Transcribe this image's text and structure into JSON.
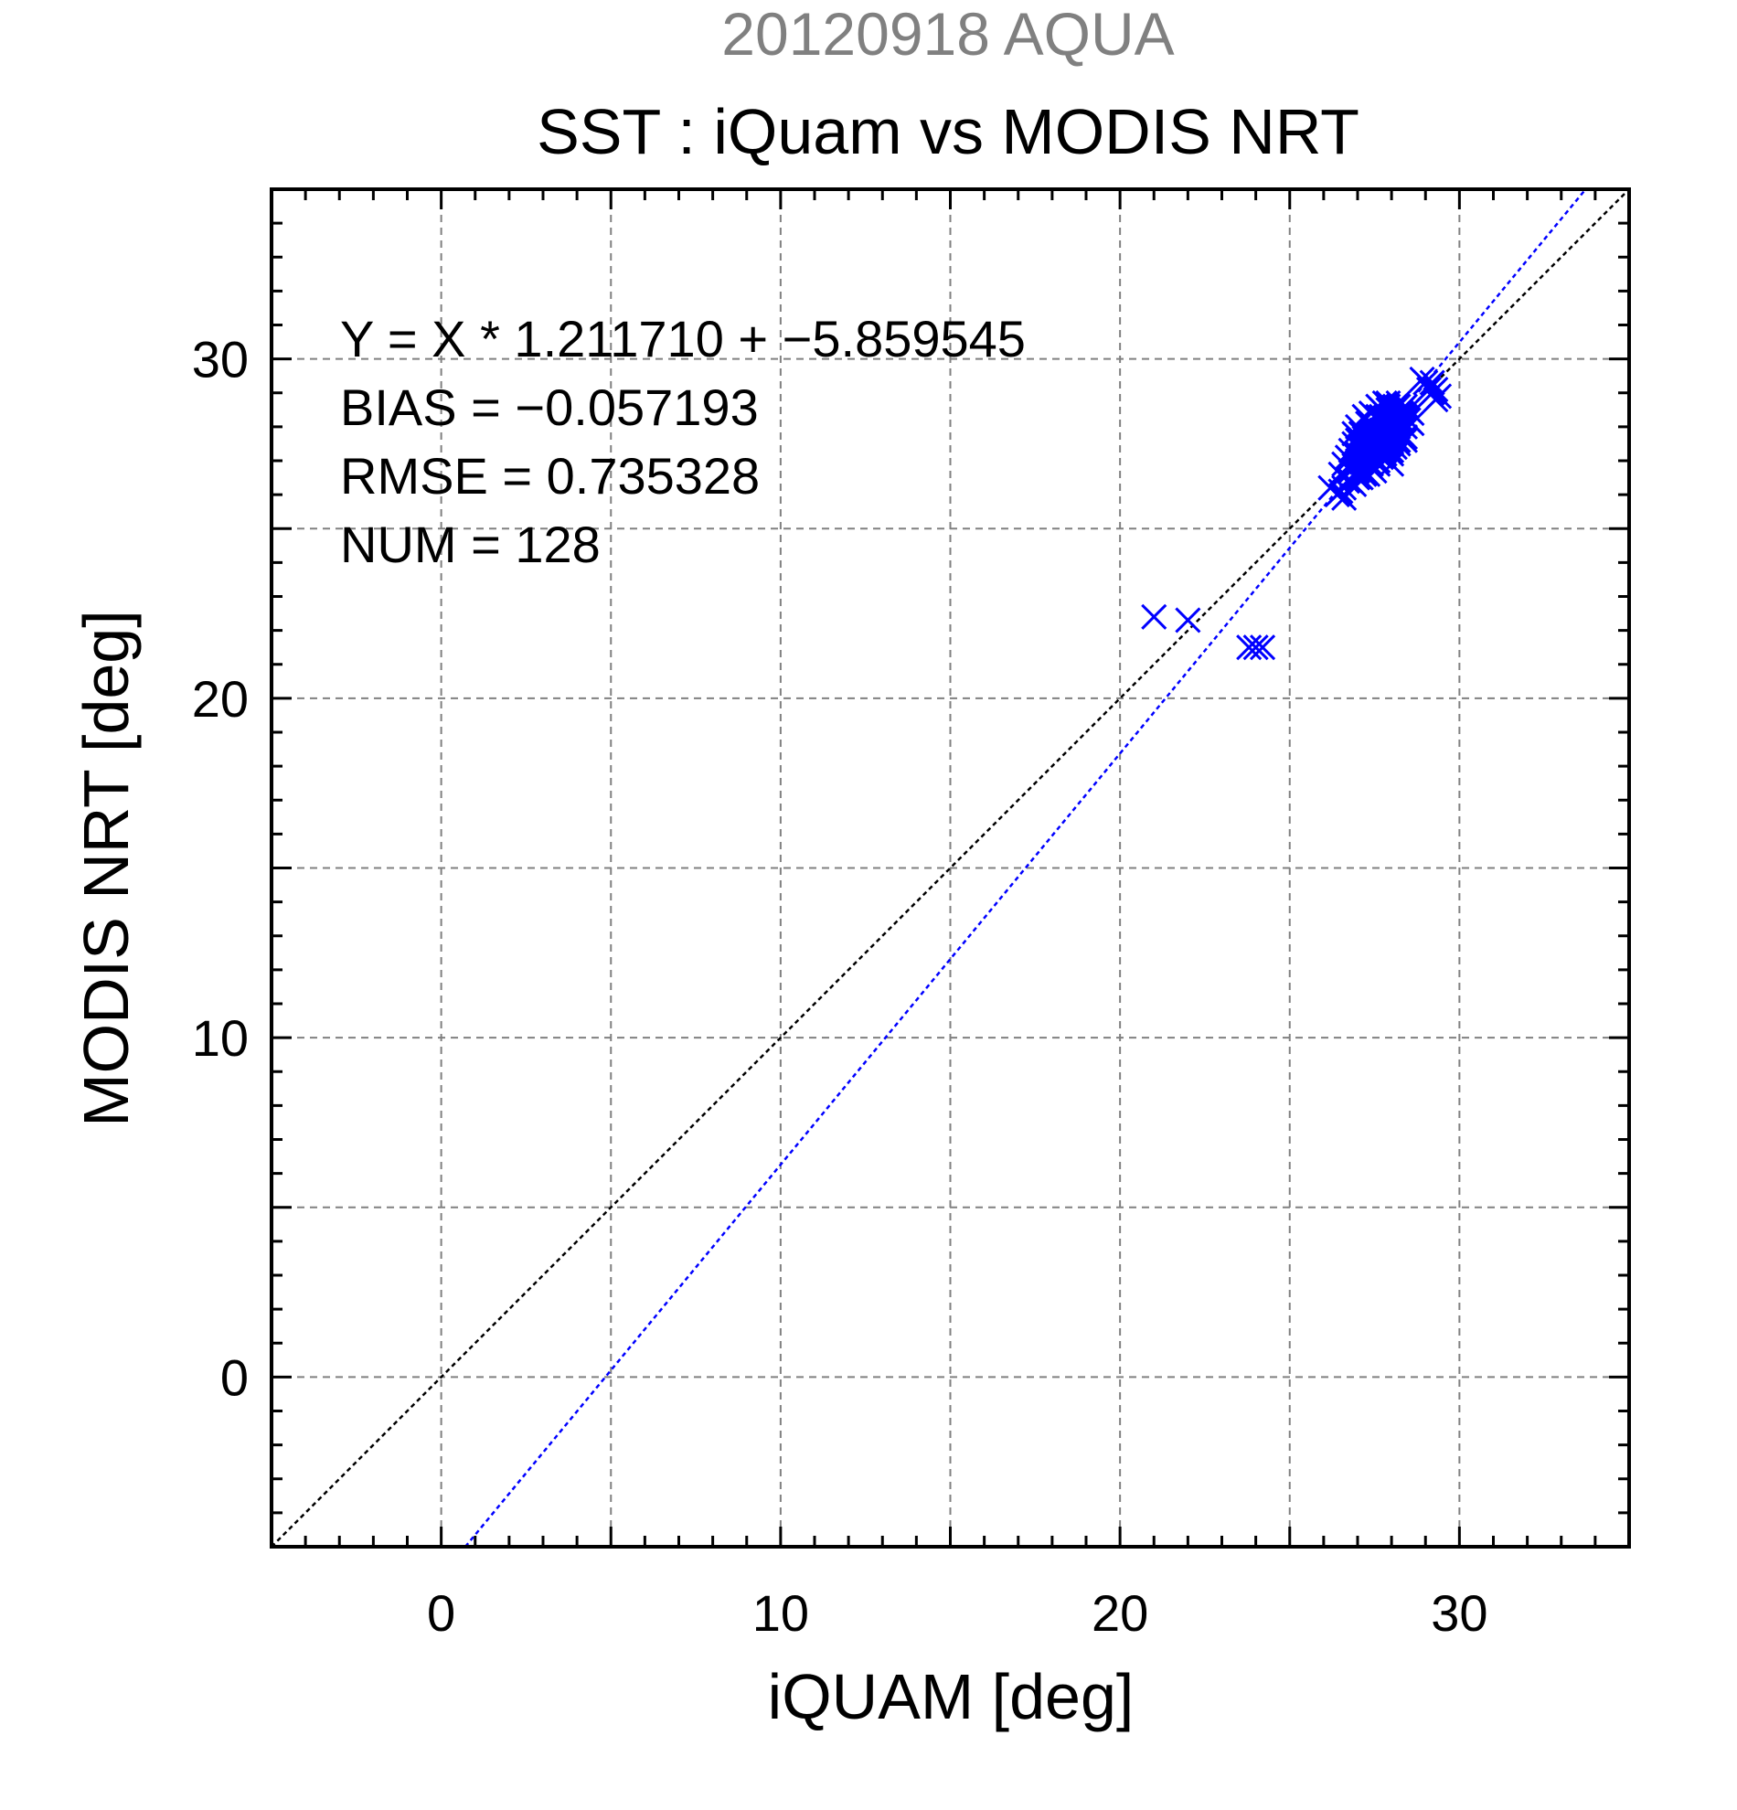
{
  "chart_data": {
    "type": "scatter",
    "supertitle": "20120918 AQUA",
    "title": "SST : iQuam vs MODIS NRT",
    "xlabel": "iQUAM [deg]",
    "ylabel": "MODIS NRT [deg]",
    "xlim": [
      -5,
      35
    ],
    "ylim": [
      -5,
      35
    ],
    "xticks": [
      0,
      10,
      20,
      30
    ],
    "yticks": [
      0,
      10,
      20,
      30
    ],
    "xtick_labels": [
      "0",
      "10",
      "20",
      "30"
    ],
    "ytick_labels": [
      "0",
      "10",
      "20",
      "30"
    ],
    "grid": true,
    "stats": [
      "Y = X * 1.211710 + −5.859545",
      "BIAS = −0.057193",
      "RMSE = 0.735328",
      "NUM = 128"
    ],
    "fit_line": {
      "slope": 1.21171,
      "intercept": -5.859545
    },
    "identity_line": {
      "slope": 1,
      "intercept": 0
    },
    "colors": {
      "supertitle": "#808080",
      "points": "#0000ff",
      "fit_line": "#0000ff",
      "identity_line": "#000000",
      "grid": "#808080"
    },
    "points": [
      [
        21.0,
        22.4
      ],
      [
        22.0,
        22.3
      ],
      [
        23.8,
        21.5
      ],
      [
        24.0,
        21.5
      ],
      [
        24.2,
        21.5
      ],
      [
        26.2,
        26.2
      ],
      [
        26.4,
        26.0
      ],
      [
        26.5,
        26.1
      ],
      [
        26.6,
        25.9
      ],
      [
        26.5,
        26.6
      ],
      [
        26.6,
        26.9
      ],
      [
        26.7,
        27.1
      ],
      [
        26.8,
        27.3
      ],
      [
        26.9,
        27.5
      ],
      [
        26.8,
        26.7
      ],
      [
        26.9,
        26.9
      ],
      [
        27.0,
        27.2
      ],
      [
        27.0,
        27.6
      ],
      [
        27.0,
        28.0
      ],
      [
        27.1,
        26.8
      ],
      [
        27.1,
        27.4
      ],
      [
        27.1,
        27.8
      ],
      [
        27.2,
        26.6
      ],
      [
        27.2,
        27.0
      ],
      [
        27.2,
        27.3
      ],
      [
        27.2,
        27.7
      ],
      [
        27.3,
        26.9
      ],
      [
        27.3,
        27.2
      ],
      [
        27.3,
        27.5
      ],
      [
        27.3,
        28.1
      ],
      [
        27.4,
        26.8
      ],
      [
        27.4,
        27.1
      ],
      [
        27.4,
        27.4
      ],
      [
        27.4,
        27.8
      ],
      [
        27.5,
        27.0
      ],
      [
        27.5,
        27.3
      ],
      [
        27.5,
        27.6
      ],
      [
        27.5,
        28.0
      ],
      [
        27.6,
        26.9
      ],
      [
        27.6,
        27.2
      ],
      [
        27.6,
        27.5
      ],
      [
        27.6,
        27.9
      ],
      [
        27.6,
        28.3
      ],
      [
        27.7,
        27.1
      ],
      [
        27.7,
        27.4
      ],
      [
        27.7,
        27.7
      ],
      [
        27.7,
        28.1
      ],
      [
        27.7,
        28.5
      ],
      [
        27.8,
        27.3
      ],
      [
        27.8,
        27.6
      ],
      [
        27.8,
        28.0
      ],
      [
        27.8,
        28.4
      ],
      [
        27.9,
        27.5
      ],
      [
        27.9,
        27.9
      ],
      [
        27.9,
        28.3
      ],
      [
        27.9,
        28.6
      ],
      [
        28.0,
        27.2
      ],
      [
        28.0,
        27.6
      ],
      [
        28.0,
        28.0
      ],
      [
        28.0,
        28.4
      ],
      [
        28.1,
        27.4
      ],
      [
        28.1,
        27.8
      ],
      [
        28.1,
        28.2
      ],
      [
        28.1,
        28.6
      ],
      [
        28.2,
        27.6
      ],
      [
        28.2,
        28.0
      ],
      [
        28.2,
        28.4
      ],
      [
        28.3,
        27.8
      ],
      [
        28.3,
        28.2
      ],
      [
        28.3,
        28.5
      ],
      [
        28.4,
        28.0
      ],
      [
        28.4,
        28.3
      ],
      [
        28.5,
        28.5
      ],
      [
        28.5,
        28.2
      ],
      [
        28.9,
        29.4
      ],
      [
        29.0,
        29.3
      ],
      [
        29.1,
        29.1
      ],
      [
        29.2,
        29.0
      ],
      [
        29.2,
        29.3
      ],
      [
        29.3,
        28.8
      ],
      [
        29.3,
        29.1
      ],
      [
        29.4,
        28.9
      ],
      [
        27.1,
        26.5
      ],
      [
        27.3,
        26.6
      ],
      [
        26.9,
        27.8
      ],
      [
        27.5,
        26.7
      ],
      [
        27.8,
        27.1
      ],
      [
        28.0,
        26.9
      ],
      [
        27.9,
        28.7
      ],
      [
        28.2,
        28.7
      ],
      [
        26.7,
        26.4
      ],
      [
        26.9,
        26.3
      ],
      [
        27.0,
        26.7
      ],
      [
        27.2,
        28.3
      ],
      [
        27.4,
        28.4
      ],
      [
        27.6,
        28.6
      ],
      [
        27.8,
        28.7
      ],
      [
        28.4,
        27.7
      ],
      [
        28.6,
        28.4
      ],
      [
        28.6,
        28.1
      ],
      [
        27.0,
        27.0
      ],
      [
        27.2,
        27.1
      ],
      [
        27.4,
        27.2
      ],
      [
        27.6,
        27.3
      ],
      [
        27.8,
        27.4
      ],
      [
        28.0,
        27.5
      ],
      [
        27.1,
        27.6
      ],
      [
        27.3,
        27.7
      ],
      [
        27.5,
        27.8
      ],
      [
        27.7,
        27.9
      ],
      [
        27.9,
        28.1
      ],
      [
        28.1,
        28.0
      ],
      [
        26.6,
        26.2
      ],
      [
        26.8,
        26.4
      ],
      [
        27.0,
        26.5
      ],
      [
        27.2,
        26.7
      ],
      [
        27.4,
        26.9
      ],
      [
        27.6,
        27.0
      ],
      [
        27.8,
        27.2
      ],
      [
        28.0,
        27.3
      ],
      [
        28.2,
        27.5
      ],
      [
        28.4,
        27.6
      ],
      [
        28.2,
        28.6
      ],
      [
        28.3,
        28.4
      ],
      [
        28.4,
        28.6
      ],
      [
        27.5,
        28.3
      ],
      [
        27.7,
        28.3
      ],
      [
        27.9,
        28.5
      ]
    ]
  }
}
